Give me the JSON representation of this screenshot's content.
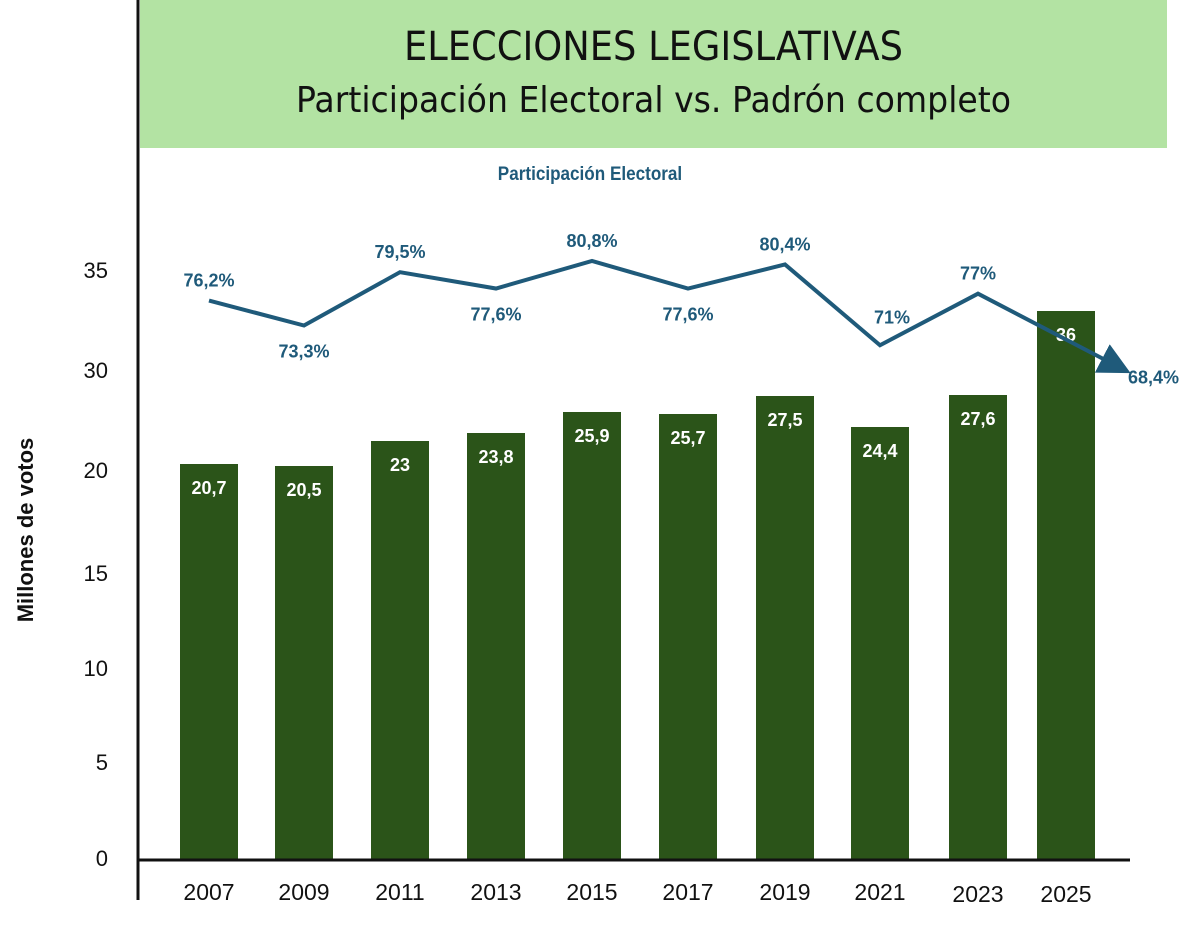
{
  "header": {
    "title": "ELECCIONES LEGISLATIVAS",
    "subtitle": "Participación Electoral vs. Padrón completo"
  },
  "colors": {
    "header_bg": "#b3e3a3",
    "bar": "#2b5419",
    "line": "#1f5a7a",
    "axis": "#111111"
  },
  "chart_data": {
    "type": "bar",
    "title": "ELECCIONES LEGISLATIVAS — Participación Electoral vs. Padrón completo",
    "xlabel": "",
    "ylabel": "Millones de votos",
    "y_ticks": [
      "35",
      "30",
      "20",
      "15",
      "10",
      "5",
      "0"
    ],
    "categories": [
      "2007",
      "2009",
      "2011",
      "2013",
      "2015",
      "2017",
      "2019",
      "2021",
      "2023",
      "2025"
    ],
    "series": [
      {
        "name": "Padrón completo",
        "type": "bar",
        "values": [
          20.7,
          20.5,
          23,
          23.8,
          25.9,
          25.7,
          27.5,
          24.4,
          27.6,
          36
        ],
        "labels": [
          "20,7",
          "20,5",
          "23",
          "23,8",
          "25,9",
          "25,7",
          "27,5",
          "24,4",
          "27,6",
          "36"
        ]
      },
      {
        "name": "Participación Electoral",
        "type": "line",
        "unit": "%",
        "values": [
          76.2,
          73.3,
          79.5,
          77.6,
          80.8,
          77.6,
          80.4,
          71,
          77,
          68.4
        ],
        "labels": [
          "76,2%",
          "73,3%",
          "79,5%",
          "77,6%",
          "80,8%",
          "77,6%",
          "80,4%",
          "71%",
          "77%",
          "68,4%"
        ],
        "label_positions": [
          "above",
          "below",
          "above",
          "below",
          "above",
          "below",
          "above",
          "above-left",
          "above",
          "right"
        ],
        "end_marker": "arrow"
      }
    ],
    "legend": "top-center",
    "grid": false
  }
}
